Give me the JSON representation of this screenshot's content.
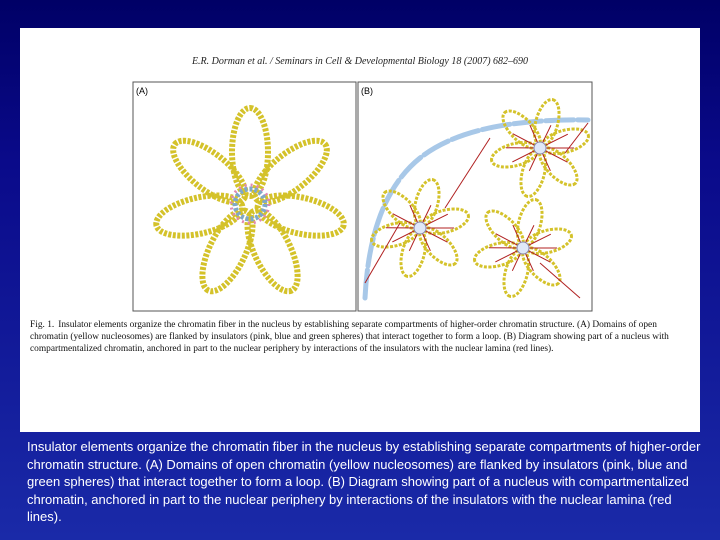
{
  "header": {
    "citation": "E.R. Dorman et al. / Seminars in Cell & Developmental Biology 18 (2007) 682–690"
  },
  "figure": {
    "panel_a_label": "(A)",
    "panel_b_label": "(B)",
    "caption_label": "Fig. 1.",
    "caption": "Insulator elements organize the chromatin fiber in the nucleus by establishing separate compartments of higher-order chromatin structure. (A) Domains of open chromatin (yellow nucleosomes) are flanked by insulators (pink, blue and green spheres) that interact together to form a loop. (B) Diagram showing part of a nucleus with compartmentalized chromatin, anchored in part to the nuclear periphery by interactions of the insulators with the nuclear lamina (red lines)."
  },
  "slide": {
    "text": "Insulator elements organize the chromatin fiber in the nucleus by establishing separate compartments of higher-order chromatin structure. (A) Domains of open chromatin (yellow nucleosomes) are flanked by insulators (pink, blue and green spheres) that interact together to form a loop. (B) Diagram showing part of a nucleus with compartmentalized chromatin, anchored in part to the nuclear periphery by interactions of the insulators with the nuclear lamina (red lines)."
  }
}
